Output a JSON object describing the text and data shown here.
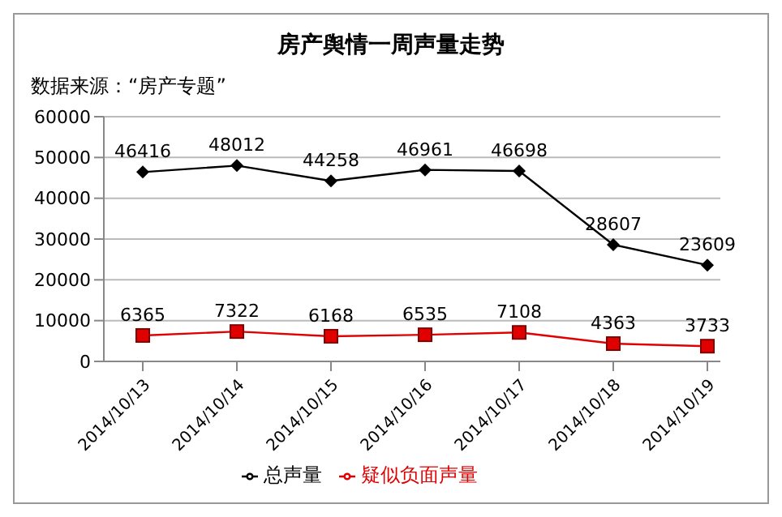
{
  "chart_data": {
    "type": "line",
    "title": "房产舆情一周声量走势",
    "annotations": [
      "数据来源：“房产专题”"
    ],
    "categories": [
      "2014/10/13",
      "2014/10/14",
      "2014/10/15",
      "2014/10/16",
      "2014/10/17",
      "2014/10/18",
      "2014/10/19"
    ],
    "series": [
      {
        "name": "总声量",
        "color": "#000000",
        "marker": "diamond",
        "values": [
          46416,
          48012,
          44258,
          46961,
          46698,
          28607,
          23609
        ]
      },
      {
        "name": "疑似负面声量",
        "color": "#e00000",
        "marker": "square",
        "values": [
          6365,
          7322,
          6168,
          6535,
          7108,
          4363,
          3733
        ]
      }
    ],
    "ylim": [
      0,
      60000
    ],
    "yticks": [
      0,
      10000,
      20000,
      30000,
      40000,
      50000,
      60000
    ],
    "grid": "y",
    "legend": "bottom",
    "data_labels": true
  }
}
